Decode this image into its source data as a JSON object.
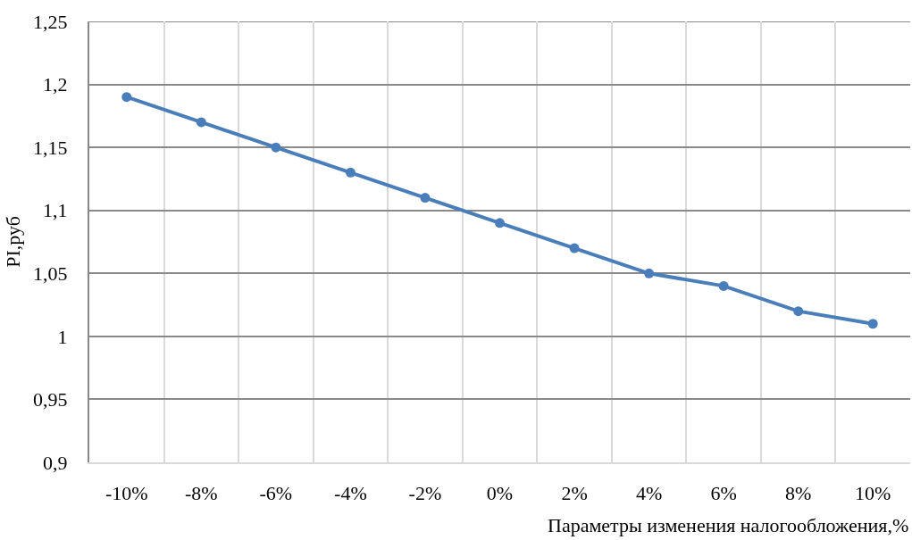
{
  "chart_data": {
    "type": "line",
    "xlabel": "Параметры изменения налогообложения,%",
    "ylabel": "PI,руб",
    "categories": [
      "-10%",
      "-8%",
      "-6%",
      "-4%",
      "-2%",
      "0%",
      "2%",
      "4%",
      "6%",
      "8%",
      "10%"
    ],
    "series": [
      {
        "color": "#4a7ebb",
        "values": [
          1.19,
          1.17,
          1.15,
          1.13,
          1.11,
          1.09,
          1.07,
          1.05,
          1.04,
          1.02,
          1.01
        ]
      }
    ],
    "ylim": [
      0.9,
      1.25
    ],
    "yticks": [
      {
        "value": 0.9,
        "label": "0,9"
      },
      {
        "value": 0.95,
        "label": "0,95"
      },
      {
        "value": 1,
        "label": "1"
      },
      {
        "value": 1.05,
        "label": "1,05"
      },
      {
        "value": 1.1,
        "label": "1,1"
      },
      {
        "value": 1.15,
        "label": "1,15"
      },
      {
        "value": 1.2,
        "label": "1,2"
      },
      {
        "value": 1.25,
        "label": "1,25"
      }
    ],
    "grid": true,
    "marker": "circle",
    "line_style": "solid"
  }
}
